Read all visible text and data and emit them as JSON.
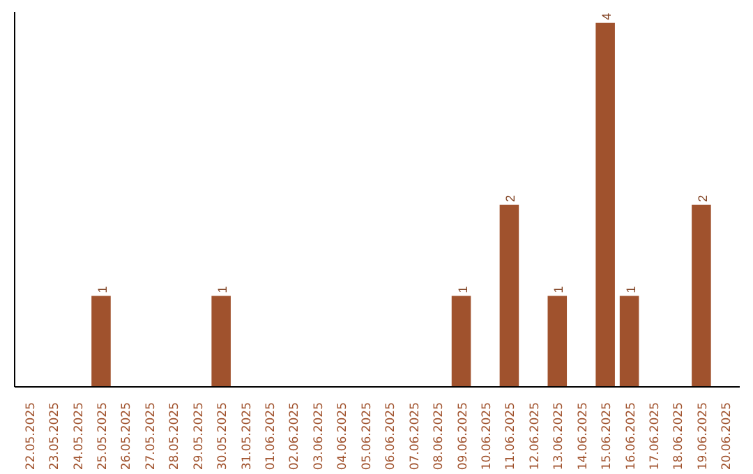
{
  "chart_data": {
    "type": "bar",
    "categories": [
      "22.05.2025",
      "23.05.2025",
      "24.05.2025",
      "25.05.2025",
      "26.05.2025",
      "27.05.2025",
      "28.05.2025",
      "29.05.2025",
      "30.05.2025",
      "31.05.2025",
      "01.06.2025",
      "02.06.2025",
      "03.06.2025",
      "04.06.2025",
      "05.06.2025",
      "06.06.2025",
      "07.06.2025",
      "08.06.2025",
      "09.06.2025",
      "10.06.2025",
      "11.06.2025",
      "12.06.2025",
      "13.06.2025",
      "14.06.2025",
      "15.06.2025",
      "16.06.2025",
      "17.06.2025",
      "18.06.2025",
      "19.06.2025",
      "20.06.2025"
    ],
    "values": [
      0,
      0,
      0,
      1,
      0,
      0,
      0,
      0,
      1,
      0,
      0,
      0,
      0,
      0,
      0,
      0,
      0,
      0,
      1,
      0,
      2,
      0,
      1,
      0,
      4,
      1,
      0,
      0,
      2,
      0
    ],
    "value_labels": [
      null,
      null,
      null,
      "1",
      null,
      null,
      null,
      null,
      "1",
      null,
      null,
      null,
      null,
      null,
      null,
      null,
      null,
      null,
      "1",
      null,
      "2",
      null,
      "1",
      null,
      "4",
      "1",
      null,
      null,
      "2",
      null
    ],
    "color": "#a0522d",
    "grid": false
  }
}
